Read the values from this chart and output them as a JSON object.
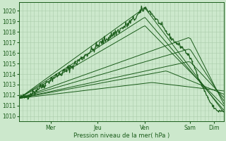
{
  "xlabel": "Pression niveau de la mer( hPa )",
  "ylim": [
    1009.5,
    1020.8
  ],
  "yticks": [
    1010,
    1011,
    1012,
    1013,
    1014,
    1015,
    1016,
    1017,
    1018,
    1019,
    1020
  ],
  "day_labels": [
    "Mer",
    "Jeu",
    "Ven",
    "Sam",
    "Dim"
  ],
  "day_positions": [
    0.155,
    0.385,
    0.615,
    0.835,
    0.955
  ],
  "bg_color": "#cce8cc",
  "grid_color": "#aaccaa",
  "line_color": "#1a5c1a",
  "forecast_configs": [
    [
      0.0,
      1011.7,
      0.615,
      1020.3,
      1.0,
      1010.4
    ],
    [
      0.0,
      1011.7,
      0.615,
      1019.4,
      1.0,
      1010.6
    ],
    [
      0.0,
      1011.7,
      0.615,
      1018.6,
      1.0,
      1011.0
    ],
    [
      0.0,
      1011.7,
      0.835,
      1017.5,
      1.0,
      1011.2
    ],
    [
      0.0,
      1011.7,
      0.835,
      1016.4,
      1.0,
      1011.5
    ],
    [
      0.0,
      1011.7,
      0.835,
      1015.2,
      1.0,
      1011.8
    ],
    [
      0.0,
      1011.7,
      0.72,
      1014.3,
      1.0,
      1012.1
    ],
    [
      0.0,
      1011.7,
      0.65,
      1013.2,
      1.0,
      1012.4
    ]
  ],
  "main_line_segments": [
    [
      0.0,
      1011.7
    ],
    [
      0.04,
      1011.9
    ],
    [
      0.07,
      1012.3
    ],
    [
      0.1,
      1012.7
    ],
    [
      0.13,
      1013.1
    ],
    [
      0.155,
      1013.5
    ],
    [
      0.18,
      1013.8
    ],
    [
      0.21,
      1014.1
    ],
    [
      0.24,
      1014.5
    ],
    [
      0.27,
      1014.9
    ],
    [
      0.3,
      1015.4
    ],
    [
      0.33,
      1015.9
    ],
    [
      0.36,
      1016.3
    ],
    [
      0.385,
      1016.7
    ],
    [
      0.41,
      1017.1
    ],
    [
      0.44,
      1017.5
    ],
    [
      0.47,
      1017.9
    ],
    [
      0.5,
      1018.3
    ],
    [
      0.53,
      1018.7
    ],
    [
      0.56,
      1019.2
    ],
    [
      0.585,
      1019.7
    ],
    [
      0.605,
      1020.1
    ],
    [
      0.615,
      1020.3
    ],
    [
      0.635,
      1020.0
    ],
    [
      0.655,
      1019.6
    ],
    [
      0.67,
      1019.2
    ],
    [
      0.685,
      1018.9
    ],
    [
      0.7,
      1018.5
    ],
    [
      0.72,
      1018.0
    ],
    [
      0.74,
      1017.5
    ],
    [
      0.76,
      1017.1
    ],
    [
      0.78,
      1016.8
    ],
    [
      0.8,
      1016.5
    ],
    [
      0.82,
      1016.0
    ],
    [
      0.835,
      1015.6
    ],
    [
      0.85,
      1015.0
    ],
    [
      0.865,
      1014.3
    ],
    [
      0.875,
      1013.8
    ],
    [
      0.885,
      1013.3
    ],
    [
      0.895,
      1012.9
    ],
    [
      0.905,
      1012.5
    ],
    [
      0.915,
      1012.1
    ],
    [
      0.925,
      1011.7
    ],
    [
      0.935,
      1011.3
    ],
    [
      0.945,
      1011.0
    ],
    [
      0.955,
      1010.8
    ],
    [
      0.965,
      1010.6
    ],
    [
      0.975,
      1010.5
    ],
    [
      0.985,
      1010.5
    ],
    [
      1.0,
      1010.4
    ]
  ],
  "noise_seed": 42,
  "noise_scale": 0.18
}
